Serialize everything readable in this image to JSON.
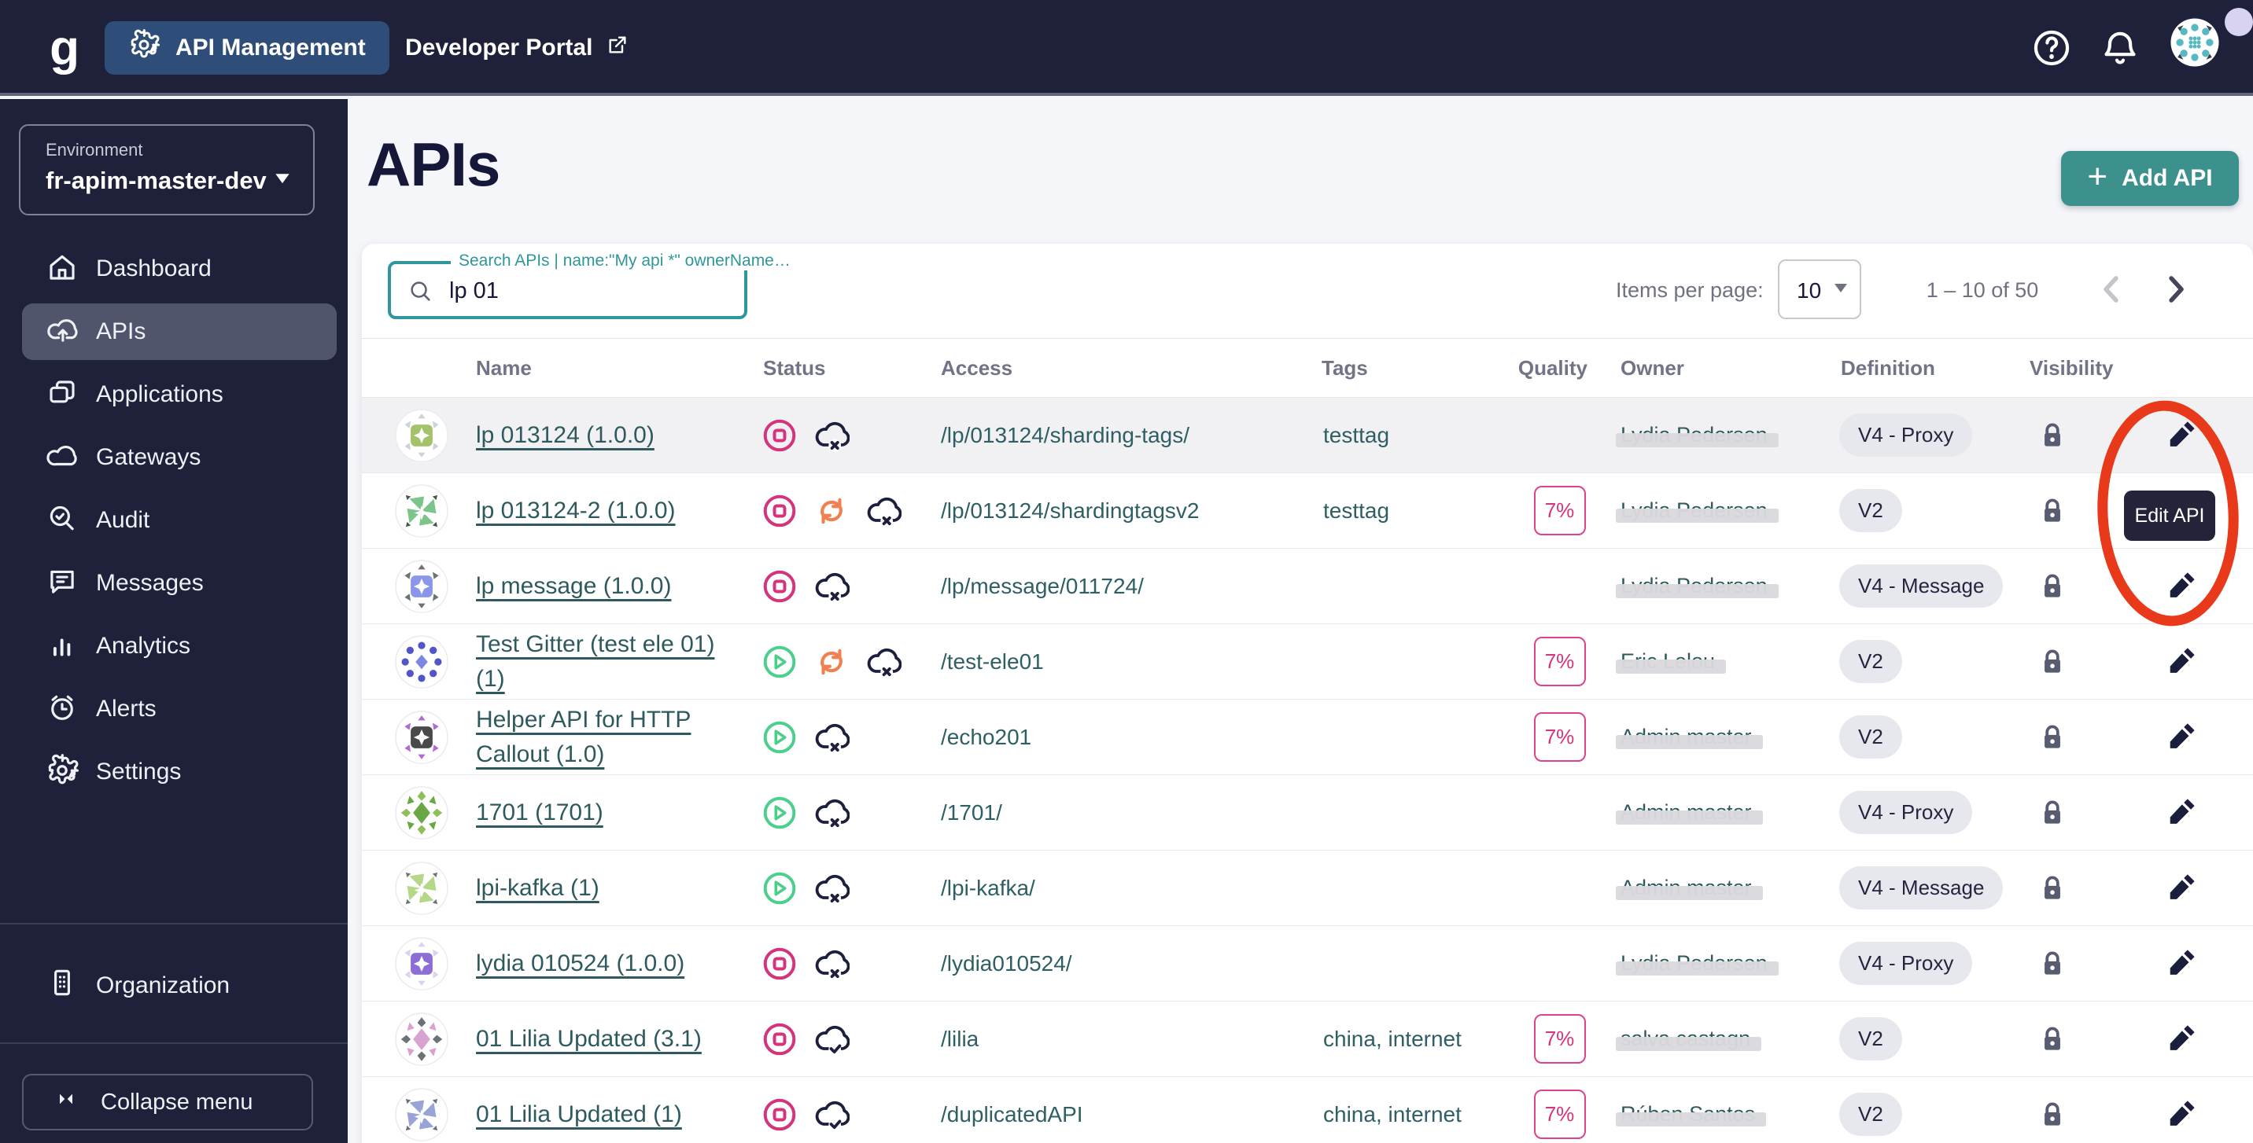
{
  "topbar": {
    "logo": "g",
    "app_switcher_label": "API Management",
    "developer_portal_label": "Developer Portal",
    "icons": [
      "help-icon",
      "notifications-icon",
      "user-avatar",
      "presence-dot"
    ]
  },
  "sidebar": {
    "environment": {
      "label": "Environment",
      "value": "fr-apim-master-dev"
    },
    "items": [
      {
        "label": "Dashboard",
        "icon": "home",
        "selected": false
      },
      {
        "label": "APIs",
        "icon": "cloud-up",
        "selected": true
      },
      {
        "label": "Applications",
        "icon": "apps",
        "selected": false
      },
      {
        "label": "Gateways",
        "icon": "cloud",
        "selected": false
      },
      {
        "label": "Audit",
        "icon": "audit",
        "selected": false
      },
      {
        "label": "Messages",
        "icon": "messages",
        "selected": false
      },
      {
        "label": "Analytics",
        "icon": "analytics",
        "selected": false
      },
      {
        "label": "Alerts",
        "icon": "alerts",
        "selected": false
      },
      {
        "label": "Settings",
        "icon": "gear",
        "selected": false
      }
    ],
    "organization": {
      "label": "Organization",
      "icon": "organization"
    },
    "collapse": {
      "label": "Collapse menu",
      "icon": "collapse"
    }
  },
  "page": {
    "title": "APIs",
    "add_button_label": "Add API",
    "search": {
      "label": "Search APIs | name:\"My api *\" ownerName…",
      "value": "lp 01"
    },
    "pagination": {
      "items_per_page_label": "Items per page:",
      "items_per_page": "10",
      "range": "1 – 10 of 50"
    }
  },
  "table": {
    "columns": [
      "Name",
      "Status",
      "Access",
      "Tags",
      "Quality",
      "Owner",
      "Definition",
      "Visibility"
    ],
    "rows": [
      {
        "name": "lp 013124 (1.0.0)",
        "status": [
          "stopped",
          "not-deployed"
        ],
        "access": "/lp/013124/sharding-tags/",
        "tags": "testtag",
        "quality": "",
        "owner": "Lydia Pedersen",
        "definition": "V4 - Proxy",
        "visibility": "private",
        "hover": true,
        "avatar": {
          "kind": "square",
          "colors": [
            "#a3c36a",
            "#cfd2d8"
          ]
        }
      },
      {
        "name": "lp 013124-2 (1.0.0)",
        "status": [
          "stopped",
          "out-of-sync",
          "not-deployed"
        ],
        "access": "/lp/013124/shardingtagsv2",
        "tags": "testtag",
        "quality": "7%",
        "owner": "Lydia Pedersen",
        "definition": "V2",
        "visibility": "private",
        "hover": false,
        "avatar": {
          "kind": "pinwheel",
          "colors": [
            "#7cc489",
            "#3f5a4c"
          ]
        }
      },
      {
        "name": "lp message (1.0.0)",
        "status": [
          "stopped",
          "not-deployed"
        ],
        "access": "/lp/message/011724/",
        "tags": "",
        "quality": "",
        "owner": "Lydia Pedersen",
        "definition": "V4 - Message",
        "visibility": "private",
        "hover": false,
        "avatar": {
          "kind": "square",
          "colors": [
            "#8a96e8",
            "#6e7277"
          ]
        }
      },
      {
        "name": "Test Gitter (test ele 01) (1)",
        "status": [
          "started",
          "out-of-sync",
          "not-deployed"
        ],
        "access": "/test-ele01",
        "tags": "",
        "quality": "7%",
        "owner": "Eric Lelou",
        "definition": "V2",
        "visibility": "private",
        "hover": false,
        "avatar": {
          "kind": "dots",
          "colors": [
            "#5056c8",
            "#7d86e2"
          ]
        }
      },
      {
        "name": "Helper API for HTTP Callout (1.0)",
        "status": [
          "started",
          "not-deployed"
        ],
        "access": "/echo201",
        "tags": "",
        "quality": "7%",
        "owner": "Admin master",
        "definition": "V2",
        "visibility": "private",
        "hover": false,
        "avatar": {
          "kind": "square",
          "colors": [
            "#4a4a4a",
            "#b06ad4"
          ]
        }
      },
      {
        "name": "1701 (1701)",
        "status": [
          "started",
          "not-deployed"
        ],
        "access": "/1701/",
        "tags": "",
        "quality": "",
        "owner": "Admin master",
        "definition": "V4 - Proxy",
        "visibility": "private",
        "hover": false,
        "avatar": {
          "kind": "diamond",
          "colors": [
            "#6ba644",
            "#8fbf5a"
          ]
        }
      },
      {
        "name": "lpi-kafka (1)",
        "status": [
          "started",
          "not-deployed"
        ],
        "access": "/lpi-kafka/",
        "tags": "",
        "quality": "",
        "owner": "Admin master",
        "definition": "V4 - Message",
        "visibility": "private",
        "hover": false,
        "avatar": {
          "kind": "pinwheel",
          "colors": [
            "#b5d78a",
            "#6e7277"
          ]
        }
      },
      {
        "name": "lydia 010524 (1.0.0)",
        "status": [
          "stopped",
          "not-deployed"
        ],
        "access": "/lydia010524/",
        "tags": "",
        "quality": "",
        "owner": "Lydia Pedersen",
        "definition": "V4 - Proxy",
        "visibility": "private",
        "hover": false,
        "avatar": {
          "kind": "square",
          "colors": [
            "#8b6fd6",
            "#d9d2f2"
          ]
        }
      },
      {
        "name": "01 Lilia Updated (3.1)",
        "status": [
          "stopped",
          "deployed"
        ],
        "access": "/lilia",
        "tags": "china, internet",
        "quality": "7%",
        "owner": "salva castagn",
        "definition": "V2",
        "visibility": "private",
        "hover": false,
        "avatar": {
          "kind": "diamond",
          "colors": [
            "#d8a3d3",
            "#6e7277"
          ]
        }
      },
      {
        "name": "01 Lilia Updated (1)",
        "status": [
          "stopped",
          "deployed"
        ],
        "access": "/duplicatedAPI",
        "tags": "china, internet",
        "quality": "7%",
        "owner": "Rúben Santos",
        "definition": "V2",
        "visibility": "private",
        "hover": false,
        "avatar": {
          "kind": "pinwheel",
          "colors": [
            "#9aa3d6",
            "#6b6f79"
          ]
        }
      }
    ]
  },
  "annotation": {
    "tooltip": "Edit API",
    "circle_color": "#e8391a"
  },
  "colors": {
    "navy": "#1e2139",
    "accent_teal": "#3c918c",
    "search_teal": "#2f979b",
    "status_stopped_pink": "#d5337c",
    "status_started_green": "#4ccf8c",
    "status_sync_orange": "#f08050",
    "status_cloud_navy": "#1c1f3d",
    "app_pill_blue": "#2e4d78"
  }
}
